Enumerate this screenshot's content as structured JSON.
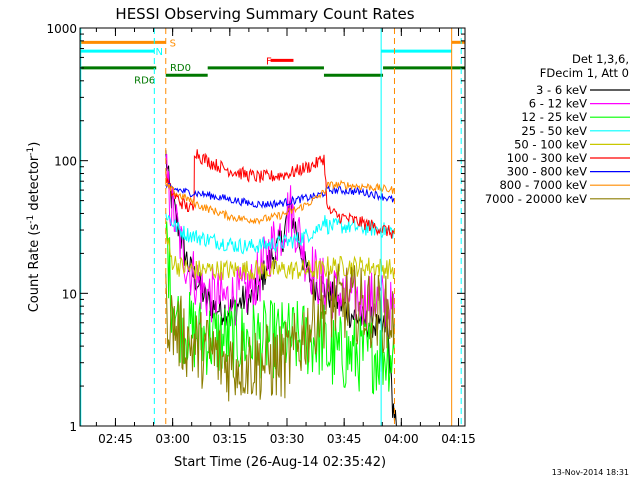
{
  "chart_data": {
    "type": "line",
    "title": "HESSI Observing Summary Count Rates",
    "xlabel": "Start Time (26-Aug-14 02:35:42)",
    "ylabel_prefix": "Count Rate (s",
    "ylabel_sup1": "-1",
    "ylabel_mid": " detector",
    "ylabel_sup2": "-1",
    "ylabel_suffix": ")",
    "yscale": "log",
    "ylim": [
      1,
      1000
    ],
    "xlim_minutes": [
      0,
      101
    ],
    "xticks": [
      {
        "label": "02:45",
        "minute": 9.3
      },
      {
        "label": "03:00",
        "minute": 24.3
      },
      {
        "label": "03:15",
        "minute": 39.3
      },
      {
        "label": "03:30",
        "minute": 54.3
      },
      {
        "label": "03:45",
        "minute": 69.3
      },
      {
        "label": "04:00",
        "minute": 84.3
      },
      {
        "label": "04:15",
        "minute": 99.3
      }
    ],
    "yticks": [
      {
        "label": "1",
        "value": 1
      },
      {
        "label": "10",
        "value": 10
      },
      {
        "label": "100",
        "value": 100
      },
      {
        "label": "1000",
        "value": 1000
      }
    ],
    "legend_header": [
      "Det 1,3,6,",
      "FDecim 1, Att 0"
    ],
    "legend_placement": "right",
    "series": [
      {
        "name": "3 - 6 keV",
        "color": "#000000",
        "x": [
          22.5,
          23.5,
          25,
          27,
          29,
          31,
          33,
          35,
          37,
          39,
          41,
          43,
          45,
          47,
          49,
          51,
          53,
          55,
          57,
          59,
          61,
          63,
          65,
          67,
          69,
          71,
          73,
          75,
          77,
          79,
          80.5,
          81,
          82,
          83
        ],
        "y": [
          110,
          60,
          40,
          22,
          15,
          12,
          9,
          8,
          7.5,
          7.5,
          8,
          9,
          9,
          11,
          16,
          20,
          25,
          45,
          28,
          16,
          12,
          11,
          10,
          9,
          8,
          7,
          6.5,
          6,
          6,
          5,
          6,
          4,
          1.5,
          1
        ]
      },
      {
        "name": "6 - 12 keV",
        "color": "#ff00ff",
        "x": [
          22.5,
          23.5,
          25,
          27,
          29,
          31,
          33,
          35,
          37,
          39,
          41,
          43,
          45,
          47,
          49,
          51,
          53,
          55,
          57,
          59,
          61,
          63,
          65,
          67,
          69,
          71,
          73,
          75,
          77,
          79,
          81,
          82.5
        ],
        "y": [
          80,
          50,
          35,
          20,
          15,
          12,
          10,
          9.5,
          9,
          9,
          9.5,
          10,
          11,
          13,
          19,
          25,
          30,
          45,
          30,
          20,
          15,
          12,
          11,
          10,
          9.5,
          9.5,
          9,
          9,
          9,
          9,
          8,
          7
        ]
      },
      {
        "name": "12 - 25 keV",
        "color": "#00ff00",
        "x": [
          22.5,
          24,
          26,
          30,
          35,
          40,
          45,
          50,
          55,
          60,
          64,
          65,
          70,
          75,
          80,
          82.5
        ],
        "y": [
          30,
          10,
          6,
          5,
          4.5,
          4.5,
          4.5,
          4.5,
          4.5,
          4.5,
          4.5,
          3.5,
          3.5,
          3.5,
          3.5,
          3.5
        ]
      },
      {
        "name": "25 - 50 keV",
        "color": "#00ffff",
        "x": [
          22.5,
          24,
          26,
          28,
          30,
          32,
          35,
          38,
          41,
          44,
          47,
          50,
          53,
          56,
          59,
          62,
          64,
          65,
          70,
          75,
          80,
          82.5
        ],
        "y": [
          40,
          35,
          30,
          28,
          27,
          26,
          25,
          24,
          23,
          22.5,
          23,
          23.5,
          24,
          25,
          27,
          30,
          36,
          32,
          32,
          31,
          30,
          29
        ]
      },
      {
        "name": "50 - 100 keV",
        "color": "#c8c800",
        "x": [
          22.5,
          24,
          26,
          30,
          35,
          40,
          45,
          50,
          55,
          60,
          64,
          65,
          70,
          75,
          80,
          82.5
        ],
        "y": [
          28,
          18,
          16,
          15,
          15,
          15,
          15,
          15,
          15,
          15,
          15,
          16,
          16,
          16,
          15.5,
          15
        ]
      },
      {
        "name": "100 - 300 keV",
        "color": "#ff0000",
        "x": [
          22.5,
          24,
          26,
          28,
          29.9,
          30,
          32,
          35,
          38,
          41,
          44,
          47,
          50,
          53,
          56,
          59,
          62,
          64,
          65,
          68,
          71,
          74,
          77,
          80,
          82.5
        ],
        "y": [
          75,
          58,
          50,
          45,
          43,
          120,
          105,
          95,
          87,
          82,
          78,
          75,
          76,
          78,
          82,
          88,
          95,
          105,
          42,
          38,
          36,
          34,
          32,
          30,
          28
        ]
      },
      {
        "name": "300 - 800 keV",
        "color": "#0000ff",
        "x": [
          22.5,
          24,
          26,
          28,
          30,
          32,
          35,
          38,
          41,
          44,
          47,
          50,
          53,
          56,
          59,
          62,
          64,
          65,
          68,
          71,
          74,
          77,
          80,
          82.5
        ],
        "y": [
          65,
          62,
          60,
          58,
          57,
          56,
          54,
          52,
          50,
          48,
          47,
          47,
          48,
          50,
          52,
          54,
          57,
          60,
          60,
          59,
          58,
          56,
          53,
          50
        ]
      },
      {
        "name": "800 - 7000 keV",
        "color": "#ff8c00",
        "x": [
          22.5,
          24,
          26,
          28,
          30,
          32,
          35,
          38,
          41,
          44,
          47,
          50,
          53,
          56,
          59,
          62,
          64,
          65,
          68,
          71,
          74,
          77,
          80,
          82.5
        ],
        "y": [
          65,
          60,
          55,
          52,
          48,
          45,
          42,
          39,
          37,
          36,
          36,
          37,
          39,
          42,
          46,
          52,
          58,
          65,
          66,
          65,
          64,
          63,
          61,
          60
        ]
      },
      {
        "name": "7000 - 20000 keV",
        "color": "#8b7d00",
        "x": [
          22.5,
          24,
          26,
          28,
          30,
          32,
          35,
          38,
          41,
          44,
          47,
          50,
          53,
          56,
          59,
          62,
          65,
          68,
          71,
          74,
          77,
          80,
          82.5
        ],
        "y": [
          8,
          6,
          5,
          4.5,
          4,
          3.8,
          3.5,
          3,
          3,
          3,
          3,
          3,
          3,
          3.5,
          5,
          7,
          8,
          8.5,
          8.5,
          8,
          7.5,
          7,
          6.5
        ]
      }
    ],
    "flag_bars": [
      {
        "label": "S",
        "color": "#ff8c00",
        "value": 780,
        "x_ranges": [
          [
            0,
            22.5
          ],
          [
            97.5,
            101
          ]
        ]
      },
      {
        "label": "N",
        "color": "#00ffff",
        "value": 670,
        "x_ranges": [
          [
            0,
            19.5
          ],
          [
            79,
            97.5
          ]
        ]
      },
      {
        "label": "F",
        "color": "#ff0000",
        "value": 570,
        "x_ranges": [
          [
            50,
            56
          ]
        ]
      },
      {
        "label": "RD0",
        "color": "#007800",
        "value": 500,
        "x_ranges": [
          [
            0,
            20
          ],
          [
            33.5,
            64
          ],
          [
            79.5,
            101
          ]
        ]
      },
      {
        "label": "RD6",
        "color": "#007800",
        "value": 440,
        "x_ranges": [
          [
            22.5,
            33.5
          ],
          [
            64,
            79.5
          ]
        ]
      }
    ],
    "vertical_markers": [
      {
        "minute": 0.2,
        "color": "#00ffff",
        "style": "solid"
      },
      {
        "minute": 19.5,
        "color": "#00ffff",
        "style": "dashed"
      },
      {
        "minute": 22.5,
        "color": "#ff8c00",
        "style": "dashed"
      },
      {
        "minute": 79,
        "color": "#00ffff",
        "style": "solid"
      },
      {
        "minute": 82.5,
        "color": "#ff8c00",
        "style": "dashed"
      },
      {
        "minute": 97.5,
        "color": "#ff8c00",
        "style": "solid"
      },
      {
        "minute": 100,
        "color": "#00ffff",
        "style": "dashed"
      }
    ],
    "footer_timestamp": "13-Nov-2014 18:31"
  }
}
